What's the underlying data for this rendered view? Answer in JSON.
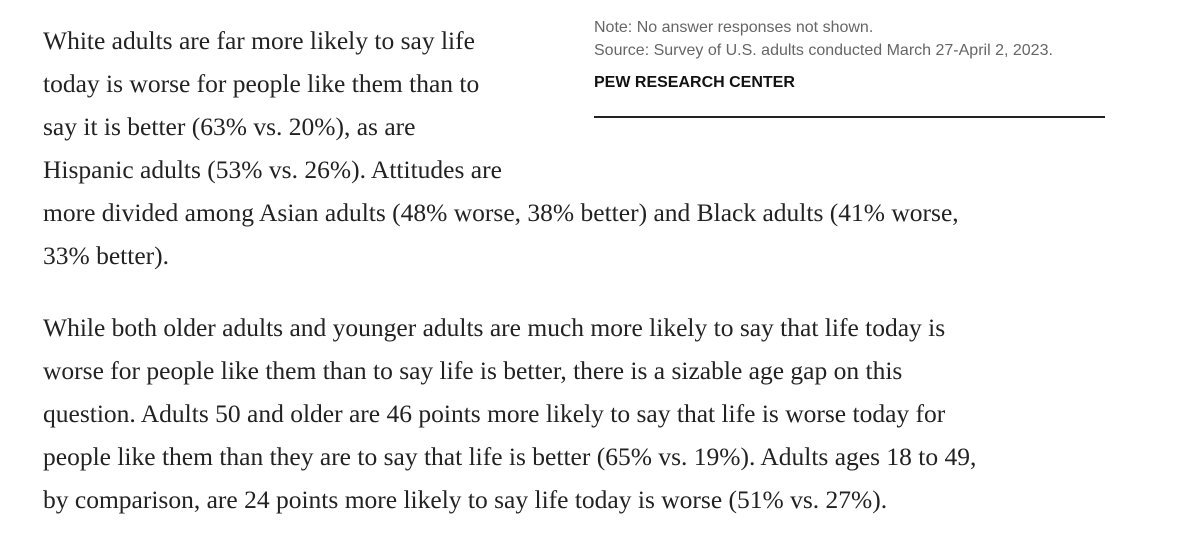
{
  "sidebar_note": {
    "note": "Note: No answer responses not shown.",
    "source": "Source: Survey of U.S. adults conducted March 27-April 2, 2023.",
    "org": "PEW RESEARCH CENTER"
  },
  "paragraphs": [
    {
      "lines": [
        "White adults are far more likely to say life",
        "today is worse for people like them than to",
        "say it is better (63% vs. 20%), as are",
        "Hispanic adults (53% vs. 26%). Attitudes are",
        "more divided among Asian adults (48% worse, 38% better) and Black adults (41% worse,",
        "33% better)."
      ]
    },
    {
      "lines": [
        "While both older adults and younger adults are much more likely to say that life today is",
        "worse for people like them than to say life is better, there is a sizable age gap on this",
        "question. Adults 50 and older are 46 points more likely to say that life is worse today for",
        "people like them than they are to say that life is better (65% vs. 19%). Adults ages 18 to 49,",
        "by comparison, are 24 points more likely to say life today is worse (51% vs. 27%)."
      ]
    }
  ]
}
